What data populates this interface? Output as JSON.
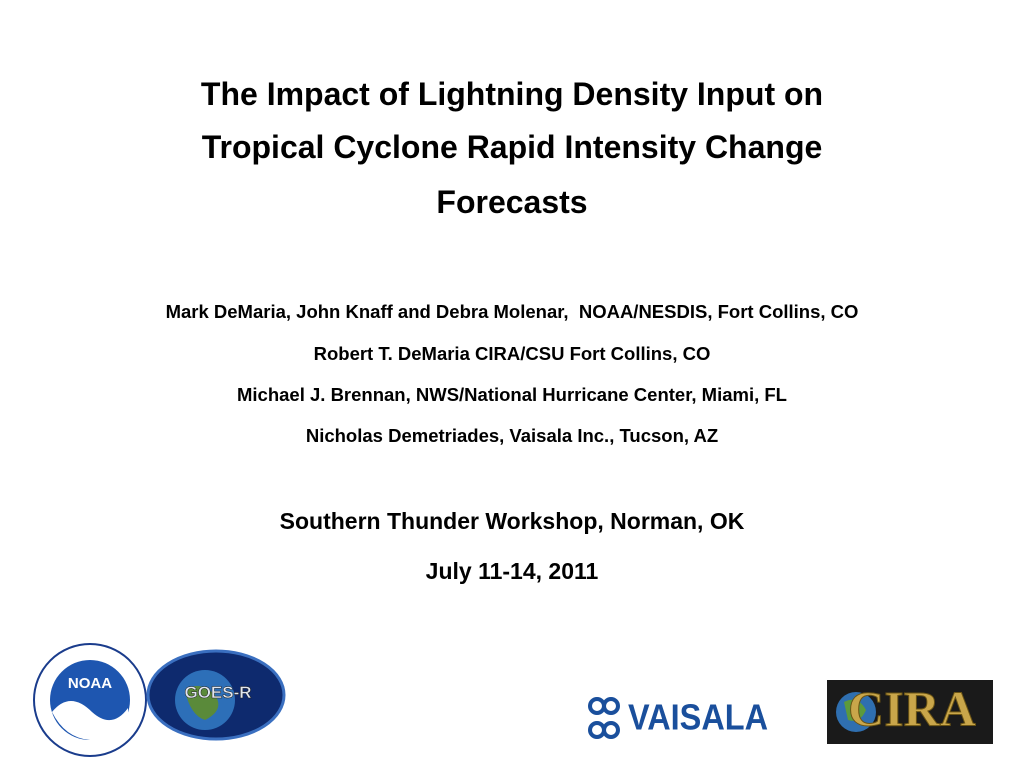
{
  "title_lines": [
    "The Impact of Lightning Density Input on",
    "Tropical Cyclone Rapid Intensity Change",
    "Forecasts"
  ],
  "authors": [
    "Mark DeMaria, John Knaff and Debra Molenar,  NOAA/NESDIS, Fort Collins, CO",
    "Robert T. DeMaria CIRA/CSU Fort Collins, CO",
    "Michael J. Brennan, NWS/National Hurricane Center, Miami, FL",
    "Nicholas Demetriades, Vaisala Inc., Tucson, AZ"
  ],
  "event": "Southern Thunder Workshop, Norman, OK",
  "date": "July 11-14, 2011",
  "logos": {
    "noaa": "NOAA",
    "goes": "GOES-R",
    "vaisala": "VAISALA",
    "cira": "CIRA"
  }
}
